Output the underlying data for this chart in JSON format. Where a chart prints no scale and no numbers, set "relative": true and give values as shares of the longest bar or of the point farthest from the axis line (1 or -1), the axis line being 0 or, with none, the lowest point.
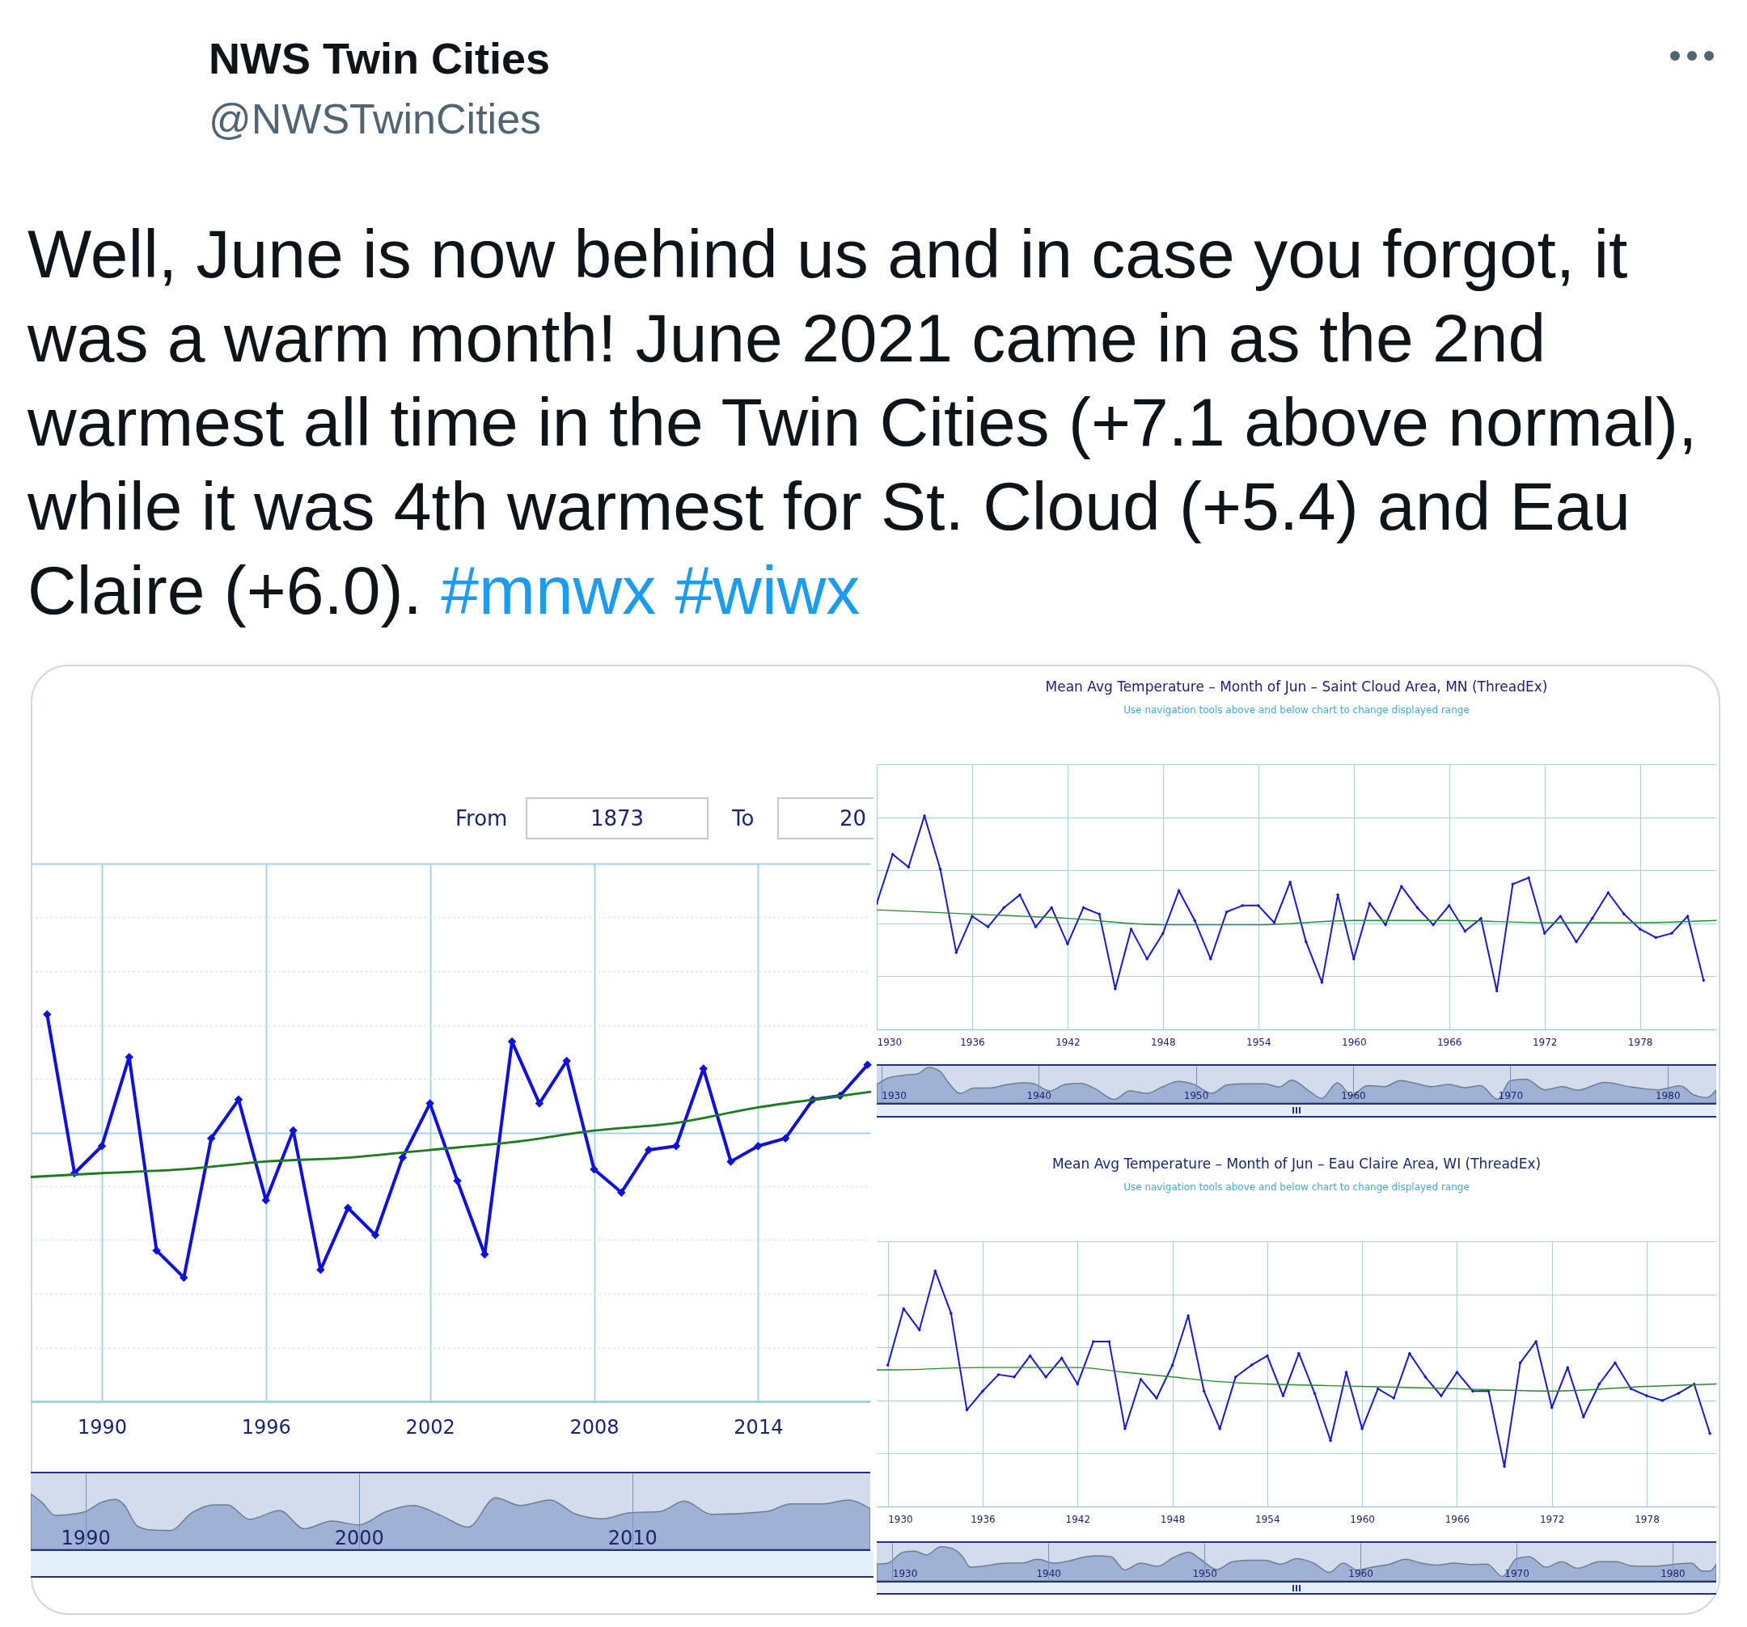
{
  "chart_data": [
    {
      "type": "other",
      "title": "NWS Twin Cities",
      "subtitle": "@NWSTwinCities",
      "annotations": [
        "Well, June is now behind us and in case you forgot, it was a warm month! June 2021 came in as the 2nd warmest all time in the Twin Cities (+7.1 above normal), while it was 4th warmest for St. Cloud (+5.4) and Eau Claire (+6.0). #mnwx #wiwx"
      ]
    },
    {
      "type": "line",
      "relative": true,
      "annotations": [
        "From",
        "1873",
        "To",
        "20"
      ],
      "x": [
        1988,
        1989,
        1990,
        1991,
        1992,
        1993,
        1994,
        1995,
        1996,
        1997,
        1998,
        1999,
        2000,
        2001,
        2002,
        2003,
        2004,
        2005,
        2006,
        2007,
        2008,
        2009,
        2010,
        2011,
        2012,
        2013,
        2014,
        2015,
        2016,
        2017,
        2018
      ],
      "xlim": [
        1987.4,
        2018.1
      ],
      "xticks": [
        1990,
        1996,
        2002,
        2008,
        2014
      ],
      "grid": true,
      "marker": "diamond",
      "series": [
        {
          "color": "#1010dd",
          "values": [
            1,
            0.59,
            0.66,
            0.89,
            0.39,
            0.32,
            0.68,
            0.78,
            0.52,
            0.7,
            0.34,
            0.5,
            0.43,
            0.63,
            0.77,
            0.57,
            0.38,
            0.93,
            0.77,
            0.88,
            0.6,
            0.54,
            0.65,
            0.66,
            0.86,
            0.62,
            0.66,
            0.68,
            0.78,
            0.79,
            0.87
          ]
        },
        {
          "type": "line",
          "marker": "none",
          "color": "#1e7b1e",
          "x": [
            1987.4,
            1990,
            1993,
            1996,
            1999,
            2002,
            2005,
            2008,
            2011,
            2014,
            2016,
            2018.1
          ],
          "values": [
            0.58,
            0.59,
            0.6,
            0.62,
            0.63,
            0.65,
            0.67,
            0.7,
            0.72,
            0.76,
            0.78,
            0.8
          ]
        }
      ]
    },
    {
      "type": "area",
      "relative": true,
      "x": [
        1988,
        1988.4,
        1988.9,
        1989.6,
        1990,
        1990.6,
        1991.1,
        1991.4,
        1991.9,
        1992.4,
        1993.1,
        1993.9,
        1994.7,
        1995.2,
        1996,
        1997.1,
        1998,
        1999,
        2000,
        2001,
        2002,
        2003,
        2004,
        2005,
        2005.9,
        2007,
        2007.9,
        2008.9,
        2009.9,
        2011,
        2011.9,
        2012.9,
        2014.9,
        2015.8,
        2017,
        2017.9,
        2018.7
      ],
      "xlim": [
        1988,
        2018.7
      ],
      "xticks": [
        1990,
        2000,
        2010
      ],
      "grid": "x",
      "series": [
        {
          "color": "#9fb1d4",
          "values": [
            1,
            0.85,
            0.61,
            0.64,
            0.68,
            0.85,
            0.9,
            0.81,
            0.42,
            0.35,
            0.34,
            0.66,
            0.8,
            0.8,
            0.54,
            0.7,
            0.37,
            0.51,
            0.44,
            0.68,
            0.79,
            0.61,
            0.4,
            0.93,
            0.79,
            0.89,
            0.64,
            0.55,
            0.66,
            0.68,
            0.87,
            0.63,
            0.68,
            0.82,
            0.82,
            0.89,
            0.73
          ]
        }
      ]
    },
    {
      "type": "line",
      "relative": true,
      "title": "Mean Avg Temperature – Month of Jun – Saint Cloud Area, MN (ThreadEx)",
      "subtitle": "Use navigation tools above and below chart to change displayed range",
      "x": [
        1930,
        1931,
        1932,
        1933,
        1934,
        1935,
        1936,
        1937,
        1938,
        1939,
        1940,
        1941,
        1942,
        1943,
        1944,
        1945,
        1946,
        1947,
        1948,
        1949,
        1950,
        1951,
        1952,
        1953,
        1954,
        1955,
        1956,
        1957,
        1958,
        1959,
        1960,
        1961,
        1962,
        1963,
        1964,
        1965,
        1966,
        1967,
        1968,
        1969,
        1970,
        1971,
        1972,
        1973,
        1974,
        1975,
        1976,
        1977,
        1978,
        1979,
        1980,
        1981,
        1982
      ],
      "xlim": [
        1930,
        1982.8
      ],
      "xticks": [
        1930,
        1936,
        1942,
        1948,
        1954,
        1960,
        1966,
        1972,
        1978
      ],
      "grid": true,
      "marker": "diamond",
      "series": [
        {
          "color": "#1a1acc",
          "values": [
            0.59,
            0.82,
            0.76,
            1,
            0.75,
            0.36,
            0.53,
            0.48,
            0.57,
            0.63,
            0.48,
            0.57,
            0.4,
            0.57,
            0.54,
            0.19,
            0.47,
            0.33,
            0.45,
            0.65,
            0.51,
            0.33,
            0.55,
            0.58,
            0.58,
            0.5,
            0.69,
            0.41,
            0.22,
            0.63,
            0.33,
            0.59,
            0.49,
            0.67,
            0.57,
            0.49,
            0.58,
            0.46,
            0.52,
            0.18,
            0.68,
            0.71,
            0.45,
            0.53,
            0.41,
            0.52,
            0.64,
            0.54,
            0.47,
            0.43,
            0.45,
            0.53,
            0.23
          ]
        },
        {
          "type": "line",
          "marker": "none",
          "color": "#2b8a2b",
          "x": [
            1930,
            1936,
            1942,
            1948,
            1951,
            1954,
            1960,
            1966,
            1972,
            1978,
            1982.8
          ],
          "values": [
            0.56,
            0.54,
            0.52,
            0.49,
            0.49,
            0.49,
            0.51,
            0.51,
            0.5,
            0.5,
            0.51
          ]
        }
      ]
    },
    {
      "type": "area",
      "relative": true,
      "x": [
        1929.7,
        1930.4,
        1931.4,
        1932.3,
        1933,
        1933.7,
        1934.3,
        1935,
        1935.9,
        1936.9,
        1937.9,
        1939,
        1939.7,
        1940.7,
        1941.7,
        1942.7,
        1943.6,
        1944.8,
        1945.8,
        1946.9,
        1947.9,
        1948.9,
        1949.9,
        1951,
        1952,
        1953,
        1954.4,
        1955.3,
        1956.1,
        1957.2,
        1958,
        1959,
        1959.9,
        1960.9,
        1962,
        1963,
        1964,
        1965,
        1966.1,
        1967.1,
        1968.1,
        1969.2,
        1970,
        1971,
        1972.2,
        1973.3,
        1974.3,
        1976,
        1977.7,
        1979.4,
        1980.8,
        1981.7,
        1982.5,
        1983.1
      ],
      "xlim": [
        1929.7,
        1983.1
      ],
      "xticks": [
        1930,
        1940,
        1950,
        1960,
        1970,
        1980
      ],
      "grid": "x",
      "series": [
        {
          "color": "#9fb1d4",
          "values": [
            0.52,
            0.7,
            0.78,
            0.82,
            1,
            0.9,
            0.55,
            0.27,
            0.42,
            0.42,
            0.51,
            0.57,
            0.54,
            0.34,
            0.52,
            0.55,
            0.4,
            0.1,
            0.34,
            0.27,
            0.46,
            0.61,
            0.52,
            0.27,
            0.51,
            0.54,
            0.54,
            0.45,
            0.64,
            0.34,
            0.13,
            0.57,
            0.22,
            0.49,
            0.46,
            0.63,
            0.55,
            0.46,
            0.52,
            0.43,
            0.49,
            0.1,
            0.63,
            0.67,
            0.37,
            0.46,
            0.36,
            0.58,
            0.45,
            0.37,
            0.48,
            0.22,
            0.15,
            0.37
          ]
        }
      ]
    },
    {
      "type": "line",
      "relative": true,
      "title": "Mean Avg Temperature – Month of Jun – Eau Claire Area, WI (ThreadEx)",
      "subtitle": "Use navigation tools above and below chart to change displayed range",
      "x": [
        1930,
        1931,
        1932,
        1933,
        1934,
        1935,
        1936,
        1937,
        1938,
        1939,
        1940,
        1941,
        1942,
        1943,
        1944,
        1945,
        1946,
        1947,
        1948,
        1949,
        1950,
        1951,
        1952,
        1953,
        1954,
        1955,
        1956,
        1957,
        1958,
        1959,
        1960,
        1961,
        1962,
        1963,
        1964,
        1965,
        1966,
        1967,
        1968,
        1969,
        1970,
        1971,
        1972,
        1973,
        1974,
        1975,
        1976,
        1977,
        1978,
        1979,
        1980,
        1981,
        1982
      ],
      "xlim": [
        1929.3,
        1982.4
      ],
      "xticks": [
        1930,
        1936,
        1942,
        1948,
        1954,
        1960,
        1966,
        1972,
        1978
      ],
      "grid": true,
      "marker": "diamond",
      "series": [
        {
          "color": "#1a1acc",
          "values": [
            0.6,
            0.84,
            0.75,
            1,
            0.82,
            0.41,
            0.49,
            0.56,
            0.55,
            0.64,
            0.55,
            0.63,
            0.52,
            0.7,
            0.7,
            0.33,
            0.54,
            0.46,
            0.6,
            0.81,
            0.49,
            0.33,
            0.55,
            0.6,
            0.64,
            0.47,
            0.65,
            0.48,
            0.28,
            0.57,
            0.33,
            0.5,
            0.46,
            0.65,
            0.55,
            0.47,
            0.57,
            0.49,
            0.49,
            0.17,
            0.61,
            0.7,
            0.42,
            0.59,
            0.38,
            0.52,
            0.61,
            0.5,
            0.47,
            0.45,
            0.48,
            0.52,
            0.31
          ]
        },
        {
          "type": "line",
          "marker": "none",
          "color": "#2b8a2b",
          "x": [
            1929.3,
            1930,
            1936,
            1942,
            1945,
            1948,
            1951,
            1954,
            1960,
            1966,
            1972,
            1978,
            1982.4
          ],
          "values": [
            0.58,
            0.58,
            0.59,
            0.59,
            0.57,
            0.55,
            0.53,
            0.52,
            0.51,
            0.5,
            0.49,
            0.51,
            0.52
          ]
        }
      ]
    },
    {
      "type": "area",
      "relative": true,
      "x": [
        1929,
        1929.7,
        1930.7,
        1931.4,
        1932.2,
        1933.1,
        1933.8,
        1934.5,
        1935,
        1935.9,
        1937.3,
        1938.3,
        1939.3,
        1940.4,
        1941.4,
        1942.1,
        1943.1,
        1944,
        1944.9,
        1945.9,
        1947,
        1948,
        1949,
        1949.7,
        1950.8,
        1951.8,
        1952.8,
        1953.9,
        1954.9,
        1955.9,
        1957,
        1958,
        1958.9,
        1959.8,
        1960.8,
        1961.8,
        1962.9,
        1963.9,
        1964.9,
        1966,
        1967,
        1968.1,
        1969.1,
        1970,
        1970.8,
        1971.9,
        1972.9,
        1973.9,
        1975.3,
        1976.4,
        1977.4,
        1978.8,
        1980.2,
        1981.2,
        1981.9,
        1982.4,
        1982.8
      ],
      "xlim": [
        1929,
        1982.8
      ],
      "xticks": [
        1930,
        1940,
        1950,
        1960,
        1970,
        1980
      ],
      "grid": "x",
      "series": [
        {
          "color": "#9fb1d4",
          "values": [
            0.49,
            0.52,
            0.84,
            0.87,
            0.76,
            1,
            0.95,
            0.71,
            0.4,
            0.44,
            0.52,
            0.52,
            0.63,
            0.52,
            0.59,
            0.68,
            0.73,
            0.71,
            0.32,
            0.52,
            0.43,
            0.68,
            0.84,
            0.65,
            0.33,
            0.56,
            0.6,
            0.6,
            0.49,
            0.65,
            0.52,
            0.25,
            0.52,
            0.32,
            0.41,
            0.48,
            0.63,
            0.52,
            0.46,
            0.52,
            0.48,
            0.49,
            0.13,
            0.65,
            0.71,
            0.4,
            0.56,
            0.37,
            0.56,
            0.56,
            0.44,
            0.43,
            0.49,
            0.52,
            0.29,
            0.29,
            0.49
          ]
        }
      ]
    }
  ]
}
